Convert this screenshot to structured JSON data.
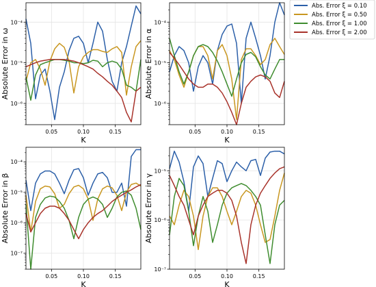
{
  "legend": {
    "entries": [
      "Abs. Error ξ = 0.10",
      "Abs. Error ξ = 0.50",
      "Abs. Error ξ = 1.00",
      "Abs. Error ξ = 2.00"
    ],
    "colors": [
      "#2b5fa8",
      "#c8961f",
      "#3e8c2e",
      "#a8322a"
    ],
    "placement": "top-right"
  },
  "chart_data": [
    {
      "type": "line",
      "panel": "top-left",
      "ylabel": "Absolute Error in ω",
      "xlabel": "K",
      "yscale": "log",
      "ylim": [
        3e-07,
        0.0003
      ],
      "xlim": [
        0.01,
        0.19
      ],
      "grid": true,
      "yticks": [
        {
          "v": 1e-06,
          "label": "10⁻⁶"
        },
        {
          "v": 1e-05,
          "label": "10⁻⁵"
        },
        {
          "v": 0.0001,
          "label": "10⁻⁴"
        }
      ],
      "xticks": [
        {
          "v": 0.05,
          "label": "0.05"
        },
        {
          "v": 0.1,
          "label": "0.10"
        },
        {
          "v": 0.15,
          "label": "0.15"
        }
      ],
      "x": [
        0.01,
        0.0175,
        0.025,
        0.0325,
        0.04,
        0.0475,
        0.055,
        0.0625,
        0.07,
        0.0775,
        0.085,
        0.0925,
        0.1,
        0.1075,
        0.115,
        0.1225,
        0.13,
        0.1375,
        0.145,
        0.1525,
        0.16,
        0.1675,
        0.175,
        0.1825,
        0.19
      ],
      "series": [
        {
          "name": "Abs. Error ξ = 0.10",
          "values": [
            0.00012,
            3e-05,
            1.3e-06,
            5e-06,
            7e-06,
            2e-06,
            4e-07,
            2.5e-06,
            6e-06,
            2e-05,
            4e-05,
            4.5e-05,
            3e-05,
            1e-05,
            3e-05,
            0.0001,
            6e-05,
            1.2e-05,
            3.5e-06,
            2e-06,
            1e-05,
            2.5e-05,
            8e-05,
            0.00025,
            0.00016
          ]
        },
        {
          "name": "Abs. Error ξ = 0.50",
          "values": [
            3.5e-06,
            1e-05,
            1.2e-05,
            7e-06,
            2.8e-06,
            1.1e-05,
            2.2e-05,
            3e-05,
            2.4e-05,
            1.1e-05,
            1.8e-06,
            8e-06,
            1.4e-05,
            1.8e-05,
            2.1e-05,
            2.1e-05,
            1.9e-05,
            1.8e-05,
            2.2e-05,
            2.5e-05,
            1.8e-05,
            1.6e-06,
            8e-06,
            2.5e-05,
            3.5e-05
          ]
        },
        {
          "name": "Abs. Error ξ = 1.00",
          "values": [
            4.5e-06,
            1.2e-06,
            5e-06,
            9e-06,
            1e-05,
            1.1e-05,
            1.2e-05,
            1.2e-05,
            1.15e-05,
            1.1e-05,
            1e-05,
            1e-05,
            9.5e-06,
            1e-05,
            1.15e-05,
            1.1e-05,
            8e-06,
            1e-05,
            1.1e-05,
            1e-05,
            7e-06,
            2.8e-06,
            2.5e-06,
            2e-06,
            1.2e-05
          ]
        },
        {
          "name": "Abs. Error ξ = 2.00",
          "values": [
            8e-06,
            9e-06,
            1e-05,
            1.1e-05,
            1.15e-05,
            1.2e-05,
            1.2e-05,
            1.2e-05,
            1.2e-05,
            1.15e-05,
            1.1e-05,
            1e-05,
            9e-06,
            8e-06,
            7e-06,
            5.5e-06,
            4.5e-06,
            3.5e-06,
            2.8e-06,
            2e-06,
            1.4e-06,
            6e-07,
            3.5e-07,
            2e-06,
            2.5e-06
          ]
        }
      ]
    },
    {
      "type": "line",
      "panel": "top-right",
      "ylabel": "Absolute Error in α",
      "xlabel": "K",
      "yscale": "log",
      "ylim": [
        3e-07,
        0.0003
      ],
      "xlim": [
        0.01,
        0.19
      ],
      "grid": true,
      "yticks": [
        {
          "v": 1e-06,
          "label": "10⁻⁶"
        },
        {
          "v": 1e-05,
          "label": "10⁻⁵"
        },
        {
          "v": 0.0001,
          "label": "10⁻⁴"
        }
      ],
      "xticks": [
        {
          "v": 0.05,
          "label": "0.05"
        },
        {
          "v": 0.1,
          "label": "0.10"
        },
        {
          "v": 0.15,
          "label": "0.15"
        }
      ],
      "x": [
        0.01,
        0.0175,
        0.025,
        0.0325,
        0.04,
        0.0475,
        0.055,
        0.0625,
        0.07,
        0.0775,
        0.085,
        0.0925,
        0.1,
        0.1075,
        0.115,
        0.1225,
        0.13,
        0.1375,
        0.145,
        0.1525,
        0.16,
        0.1675,
        0.175,
        0.1825,
        0.19
      ],
      "series": [
        {
          "name": "Abs. Error ξ = 0.10",
          "values": [
            6e-06,
            1.5e-05,
            2.5e-05,
            2e-05,
            1e-05,
            2e-06,
            8e-06,
            1.5e-05,
            1e-05,
            3e-06,
            2e-05,
            5e-05,
            8e-05,
            9e-05,
            3e-05,
            1e-06,
            4e-05,
            0.0001,
            4e-05,
            1.5e-05,
            4e-06,
            1.5e-05,
            0.0001,
            0.0003,
            0.00015
          ]
        },
        {
          "name": "Abs. Error ξ = 0.50",
          "values": [
            2e-05,
            1.2e-05,
            5e-06,
            2.5e-06,
            6e-06,
            1.5e-05,
            2.5e-05,
            2.5e-05,
            1.5e-05,
            4e-06,
            2e-05,
            2.8e-05,
            1.5e-05,
            4e-06,
            4e-07,
            1.2e-05,
            2.2e-05,
            2.2e-05,
            1.5e-05,
            9e-06,
            1.2e-05,
            2.8e-05,
            4e-05,
            2.5e-05,
            1.6e-05
          ]
        },
        {
          "name": "Abs. Error ξ = 1.00",
          "values": [
            4e-05,
            1.5e-05,
            6e-06,
            3e-06,
            6e-06,
            1.5e-05,
            2.5e-05,
            2.8e-05,
            2.5e-05,
            1.8e-05,
            1.1e-05,
            6e-06,
            3e-06,
            1.5e-06,
            4e-06,
            1e-05,
            1.6e-05,
            1.8e-05,
            1.4e-05,
            8e-06,
            5e-06,
            4e-06,
            7e-06,
            1.2e-05,
            1.2e-05
          ]
        },
        {
          "name": "Abs. Error ξ = 2.00",
          "values": [
            1.8e-05,
            1.3e-05,
            9e-06,
            6e-06,
            4e-06,
            3e-06,
            2.5e-06,
            2.5e-06,
            3e-06,
            3e-06,
            2.5e-06,
            1.8e-06,
            1.1e-06,
            6e-07,
            3e-07,
            1e-06,
            2.5e-06,
            3.5e-06,
            4.5e-06,
            5e-06,
            4.5e-06,
            3.5e-06,
            1.8e-06,
            1.4e-06,
            3.5e-06
          ]
        }
      ]
    },
    {
      "type": "line",
      "panel": "bottom-left",
      "ylabel": "Absolute Error in β",
      "xlabel": "K",
      "yscale": "log",
      "ylim": [
        3e-08,
        0.0003
      ],
      "xlim": [
        0.01,
        0.19
      ],
      "grid": true,
      "yticks": [
        {
          "v": 1e-07,
          "label": "10⁻⁷"
        },
        {
          "v": 1e-06,
          "label": "10⁻⁶"
        },
        {
          "v": 1e-05,
          "label": "10⁻⁵"
        },
        {
          "v": 0.0001,
          "label": "10⁻⁴"
        }
      ],
      "xticks": [
        {
          "v": 0.05,
          "label": "0.05"
        },
        {
          "v": 0.1,
          "label": "0.10"
        },
        {
          "v": 0.15,
          "label": "0.15"
        }
      ],
      "x": [
        0.01,
        0.0175,
        0.025,
        0.0325,
        0.04,
        0.0475,
        0.055,
        0.0625,
        0.07,
        0.0775,
        0.085,
        0.0925,
        0.1,
        0.1075,
        0.115,
        0.1225,
        0.13,
        0.1375,
        0.145,
        0.1525,
        0.16,
        0.1675,
        0.175,
        0.1825,
        0.19
      ],
      "series": [
        {
          "name": "Abs. Error ξ = 0.10",
          "values": [
            2.5e-05,
            2.5e-06,
            2e-05,
            4e-05,
            5e-05,
            5e-05,
            4e-05,
            2e-05,
            9e-06,
            2.5e-05,
            5.5e-05,
            6e-05,
            3e-05,
            8e-06,
            2e-05,
            4e-05,
            4.5e-05,
            3e-05,
            1e-05,
            1e-05,
            2e-05,
            3.5e-06,
            0.00015,
            0.00025,
            0.00025
          ]
        },
        {
          "name": "Abs. Error ξ = 0.50",
          "values": [
            8e-06,
            5e-07,
            5e-06,
            1.3e-05,
            1.6e-05,
            1.5e-05,
            9e-06,
            3e-06,
            4e-06,
            9e-06,
            1.5e-05,
            1.7e-05,
            1.3e-05,
            6e-06,
            1.2e-06,
            6e-06,
            1.3e-05,
            1.6e-05,
            1.4e-05,
            8e-06,
            2.5e-06,
            1e-05,
            1.8e-05,
            2e-05,
            1.6e-05
          ]
        },
        {
          "name": "Abs. Error ξ = 1.00",
          "values": [
            4e-06,
            3e-08,
            1.5e-06,
            4e-06,
            6.5e-06,
            7.5e-06,
            7e-06,
            5e-06,
            3e-06,
            1.2e-06,
            3e-07,
            1.5e-06,
            4e-06,
            6e-06,
            7e-06,
            6e-06,
            4e-06,
            1.5e-06,
            3e-06,
            7e-06,
            1e-05,
            1.1e-05,
            8e-06,
            3e-06,
            6e-07
          ]
        },
        {
          "name": "Abs. Error ξ = 2.00",
          "values": [
            2e-06,
            5e-07,
            1e-06,
            2e-06,
            3e-06,
            3.5e-06,
            3.5e-06,
            3e-06,
            2e-06,
            1.2e-06,
            6e-07,
            3e-07,
            6e-07,
            1e-06,
            1.5e-06,
            2e-06,
            2.5e-06,
            3.5e-06,
            5e-06,
            6.5e-06,
            8e-06,
            1e-05,
            1.2e-05,
            1.5e-05,
            1.8e-05
          ]
        }
      ]
    },
    {
      "type": "line",
      "panel": "bottom-right",
      "ylabel": "Absolute Error in γ",
      "xlabel": "K",
      "yscale": "log",
      "ylim": [
        1e-07,
        3e-05
      ],
      "xlim": [
        0.01,
        0.19
      ],
      "grid": true,
      "yticks": [
        {
          "v": 1e-07,
          "label": "10⁻⁷"
        },
        {
          "v": 1e-06,
          "label": "10⁻⁶"
        },
        {
          "v": 1e-05,
          "label": "10⁻⁵"
        }
      ],
      "xticks": [
        {
          "v": 0.05,
          "label": "0.05"
        },
        {
          "v": 0.1,
          "label": "0.10"
        },
        {
          "v": 0.15,
          "label": "0.15"
        }
      ],
      "x": [
        0.01,
        0.0175,
        0.025,
        0.0325,
        0.04,
        0.0475,
        0.055,
        0.0625,
        0.07,
        0.0775,
        0.085,
        0.0925,
        0.1,
        0.1075,
        0.115,
        0.1225,
        0.13,
        0.1375,
        0.145,
        0.1525,
        0.16,
        0.1675,
        0.175,
        0.1825,
        0.19
      ],
      "series": [
        {
          "name": "Abs. Error ξ = 0.10",
          "values": [
            1.1e-05,
            2.5e-05,
            1.5e-05,
            6e-06,
            1.5e-06,
            1.2e-05,
            2e-05,
            1.4e-05,
            3e-06,
            7e-06,
            1.6e-05,
            1.4e-05,
            6e-06,
            1e-05,
            1.5e-05,
            1.2e-05,
            1e-05,
            1.6e-05,
            1.7e-05,
            8e-06,
            1.8e-05,
            2.4e-05,
            2.5e-05,
            2.5e-05,
            2.2e-05
          ]
        },
        {
          "name": "Abs. Error ξ = 0.50",
          "values": [
            1.2e-06,
            8e-07,
            2e-06,
            4e-06,
            3e-06,
            1.2e-06,
            2.5e-07,
            1.2e-06,
            3e-06,
            4.5e-06,
            4.5e-06,
            3e-06,
            1.5e-06,
            8e-07,
            1.5e-06,
            3e-06,
            4e-06,
            3.5e-06,
            2e-06,
            8e-07,
            3.5e-07,
            4e-07,
            1.2e-06,
            4e-06,
            9e-06
          ]
        },
        {
          "name": "Abs. Error ξ = 1.00",
          "values": [
            5e-07,
            3e-06,
            7e-06,
            5e-06,
            1.5e-06,
            3e-07,
            1.2e-06,
            3e-06,
            1.5e-06,
            3.5e-07,
            8e-07,
            2e-06,
            3.5e-06,
            4.5e-06,
            5e-06,
            5.5e-06,
            5e-06,
            4e-06,
            3e-06,
            2e-06,
            5e-07,
            1.3e-07,
            8e-07,
            2e-06,
            2.5e-06
          ]
        },
        {
          "name": "Abs. Error ξ = 2.00",
          "values": [
            8e-06,
            5e-06,
            3e-06,
            2e-06,
            1e-06,
            5e-07,
            1.2e-06,
            2e-06,
            3e-06,
            3.5e-06,
            4e-06,
            4e-06,
            3.5e-06,
            2.5e-06,
            1.2e-06,
            3.5e-07,
            1.3e-07,
            8e-07,
            2e-06,
            3.5e-06,
            5e-06,
            7e-06,
            9e-06,
            1.1e-05,
            1.2e-05
          ]
        }
      ]
    }
  ]
}
